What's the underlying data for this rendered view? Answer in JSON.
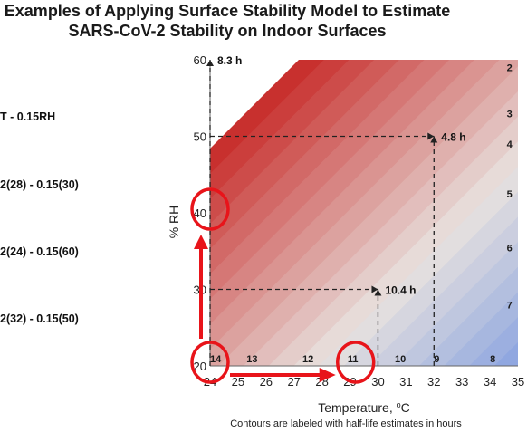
{
  "header": {
    "title_line1": "Examples of Applying Surface Stability Model to Estimate",
    "title_line2": "SARS-CoV-2 Stability on Indoor Surfaces"
  },
  "equations": [
    "T - 0.15RH",
    "2(28) - 0.15(30)",
    "2(24) - 0.15(60)",
    "2(32) - 0.15(50)"
  ],
  "chart_data": {
    "type": "contour",
    "xlabel": "Temperature, oC",
    "ylabel": "% RH",
    "caption": "Contours are labeled with half-life estimates in hours",
    "xlim": [
      24,
      35
    ],
    "ylim": [
      20,
      60
    ],
    "x_ticks": [
      24,
      25,
      26,
      27,
      28,
      29,
      30,
      31,
      32,
      33,
      34,
      35
    ],
    "y_ticks": [
      20,
      30,
      40,
      50,
      60
    ],
    "contour_labels": [
      {
        "label": "14",
        "x": 24.2,
        "y": 20.5
      },
      {
        "label": "13",
        "x": 25.5,
        "y": 20.5
      },
      {
        "label": "12",
        "x": 27.5,
        "y": 20.5
      },
      {
        "label": "11",
        "x": 29.1,
        "y": 20.5
      },
      {
        "label": "10",
        "x": 30.8,
        "y": 20.5
      },
      {
        "label": "9",
        "x": 32.1,
        "y": 20.5
      },
      {
        "label": "8",
        "x": 34.1,
        "y": 20.5
      },
      {
        "label": "7",
        "x": 34.7,
        "y": 27.5
      },
      {
        "label": "6",
        "x": 34.7,
        "y": 35
      },
      {
        "label": "5",
        "x": 34.7,
        "y": 42
      },
      {
        "label": "4",
        "x": 34.7,
        "y": 48.5
      },
      {
        "label": "3",
        "x": 34.7,
        "y": 52.5
      },
      {
        "label": "2",
        "x": 34.7,
        "y": 58.5
      }
    ],
    "annotations": [
      {
        "label": "8.3 h",
        "x": 24,
        "y": 60
      },
      {
        "label": "4.8 h",
        "x": 32,
        "y": 50
      },
      {
        "label": "10.4 h",
        "x": 30,
        "y": 30
      }
    ],
    "circled_points": [
      {
        "x": 24,
        "y": 40
      },
      {
        "x": 24,
        "y": 20
      },
      {
        "x": 29.2,
        "y": 20
      }
    ],
    "colors": {
      "warm": "#c8302e",
      "neutral": "#e8e2df",
      "cool": "#5580e0",
      "highlight": "#e8141a",
      "dashed": "#222222"
    }
  }
}
